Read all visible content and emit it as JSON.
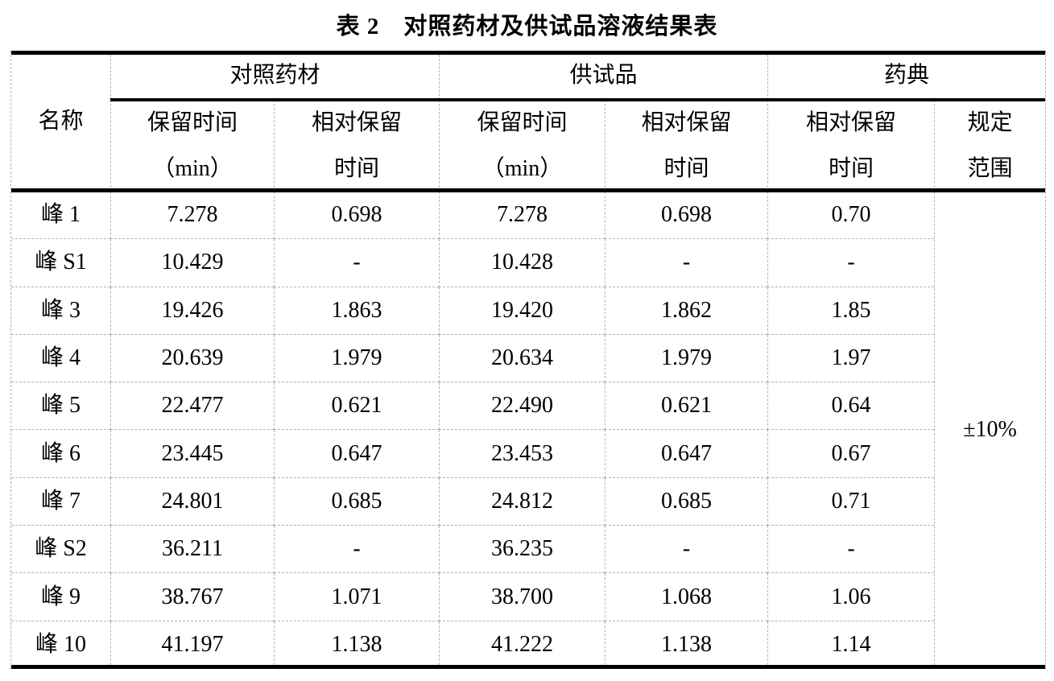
{
  "title": "表 2　对照药材及供试品溶液结果表",
  "table": {
    "header": {
      "name": "名称",
      "group_reference": "对照药材",
      "group_test": "供试品",
      "group_pharmacopoeia": "药典",
      "sub_rt": [
        "保留时间",
        "（min）"
      ],
      "sub_rrt": [
        "相对保留",
        "时间"
      ],
      "sub_range": [
        "规定",
        "范围"
      ]
    },
    "rows": [
      {
        "name": "峰 1",
        "ref_rt": "7.278",
        "ref_rrt": "0.698",
        "test_rt": "7.278",
        "test_rrt": "0.698",
        "ph_rrt": "0.70"
      },
      {
        "name": "峰 S1",
        "ref_rt": "10.429",
        "ref_rrt": "-",
        "test_rt": "10.428",
        "test_rrt": "-",
        "ph_rrt": "-"
      },
      {
        "name": "峰 3",
        "ref_rt": "19.426",
        "ref_rrt": "1.863",
        "test_rt": "19.420",
        "test_rrt": "1.862",
        "ph_rrt": "1.85"
      },
      {
        "name": "峰 4",
        "ref_rt": "20.639",
        "ref_rrt": "1.979",
        "test_rt": "20.634",
        "test_rrt": "1.979",
        "ph_rrt": "1.97"
      },
      {
        "name": "峰 5",
        "ref_rt": "22.477",
        "ref_rrt": "0.621",
        "test_rt": "22.490",
        "test_rrt": "0.621",
        "ph_rrt": "0.64"
      },
      {
        "name": "峰 6",
        "ref_rt": "23.445",
        "ref_rrt": "0.647",
        "test_rt": "23.453",
        "test_rrt": "0.647",
        "ph_rrt": "0.67"
      },
      {
        "name": "峰 7",
        "ref_rt": "24.801",
        "ref_rrt": "0.685",
        "test_rt": "24.812",
        "test_rrt": "0.685",
        "ph_rrt": "0.71"
      },
      {
        "name": "峰 S2",
        "ref_rt": "36.211",
        "ref_rrt": "-",
        "test_rt": "36.235",
        "test_rrt": "-",
        "ph_rrt": "-"
      },
      {
        "name": "峰 9",
        "ref_rt": "38.767",
        "ref_rrt": "1.071",
        "test_rt": "38.700",
        "test_rrt": "1.068",
        "ph_rrt": "1.06"
      },
      {
        "name": "峰 10",
        "ref_rt": "41.197",
        "ref_rrt": "1.138",
        "test_rt": "41.222",
        "test_rrt": "1.138",
        "ph_rrt": "1.14"
      }
    ],
    "range_value": "±10%"
  },
  "chart_data": {
    "type": "table",
    "title": "表 2　对照药材及供试品溶液结果表",
    "column_groups": [
      "对照药材",
      "供试品",
      "药典"
    ],
    "columns": [
      "名称",
      "对照药材 保留时间（min）",
      "对照药材 相对保留时间",
      "供试品 保留时间（min）",
      "供试品 相对保留时间",
      "药典 相对保留时间",
      "规定范围"
    ],
    "rows": [
      [
        "峰 1",
        "7.278",
        "0.698",
        "7.278",
        "0.698",
        "0.70"
      ],
      [
        "峰 S1",
        "10.429",
        "-",
        "10.428",
        "-",
        "-"
      ],
      [
        "峰 3",
        "19.426",
        "1.863",
        "19.420",
        "1.862",
        "1.85"
      ],
      [
        "峰 4",
        "20.639",
        "1.979",
        "20.634",
        "1.979",
        "1.97"
      ],
      [
        "峰 5",
        "22.477",
        "0.621",
        "22.490",
        "0.621",
        "0.64"
      ],
      [
        "峰 6",
        "23.445",
        "0.647",
        "23.453",
        "0.647",
        "0.67"
      ],
      [
        "峰 7",
        "24.801",
        "0.685",
        "24.812",
        "0.685",
        "0.71"
      ],
      [
        "峰 S2",
        "36.211",
        "-",
        "36.235",
        "-",
        "-"
      ],
      [
        "峰 9",
        "38.767",
        "1.071",
        "38.700",
        "1.068",
        "1.06"
      ],
      [
        "峰 10",
        "41.197",
        "1.138",
        "41.222",
        "1.138",
        "1.14"
      ]
    ],
    "merged_last_column_value": "±10%"
  }
}
